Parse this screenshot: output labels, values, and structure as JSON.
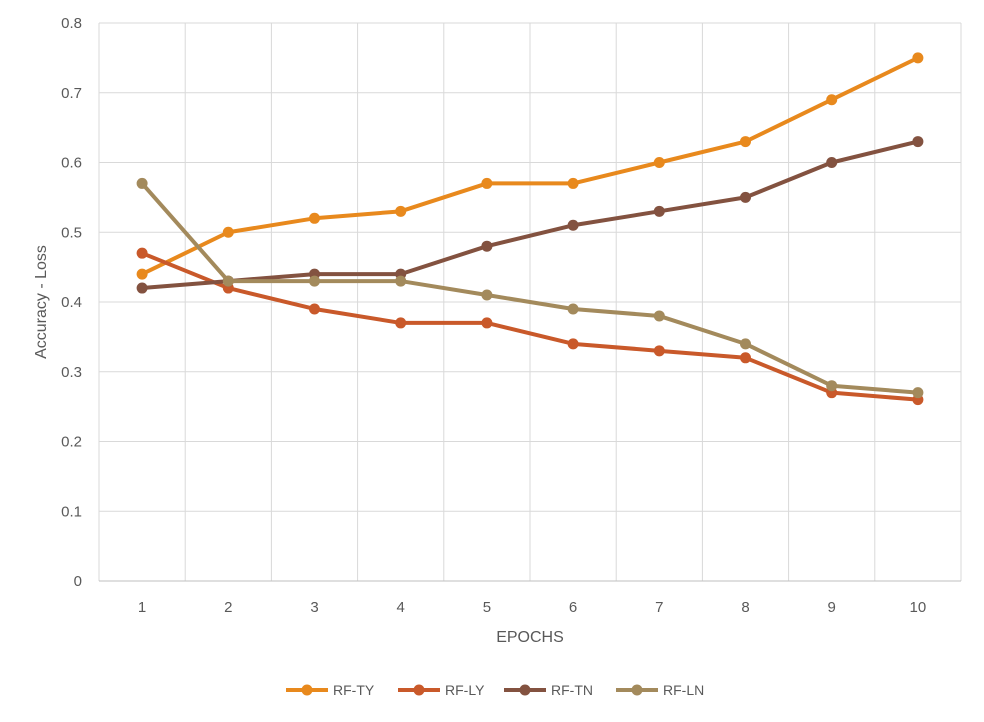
{
  "chart_data": {
    "type": "line",
    "title": "",
    "xlabel": "EPOCHS",
    "ylabel": "Accuracy - Loss",
    "categories": [
      "1",
      "2",
      "3",
      "4",
      "5",
      "6",
      "7",
      "8",
      "9",
      "10"
    ],
    "ylim": [
      0,
      0.8
    ],
    "yticks": [
      "0",
      "0.1",
      "0.2",
      "0.3",
      "0.4",
      "0.5",
      "0.6",
      "0.7",
      "0.8"
    ],
    "grid": true,
    "legend_position": "bottom",
    "series": [
      {
        "name": "RF-TY",
        "color": "#E8891D",
        "values": [
          0.44,
          0.5,
          0.52,
          0.53,
          0.57,
          0.57,
          0.6,
          0.63,
          0.69,
          0.75
        ]
      },
      {
        "name": "RF-LY",
        "color": "#C9592A",
        "values": [
          0.47,
          0.42,
          0.39,
          0.37,
          0.37,
          0.34,
          0.33,
          0.32,
          0.27,
          0.26
        ]
      },
      {
        "name": "RF-TN",
        "color": "#835240",
        "values": [
          0.42,
          0.43,
          0.44,
          0.44,
          0.48,
          0.51,
          0.53,
          0.55,
          0.6,
          0.63
        ]
      },
      {
        "name": "RF-LN",
        "color": "#A38A5C",
        "values": [
          0.57,
          0.43,
          0.43,
          0.43,
          0.41,
          0.39,
          0.38,
          0.34,
          0.28,
          0.27
        ]
      }
    ]
  }
}
